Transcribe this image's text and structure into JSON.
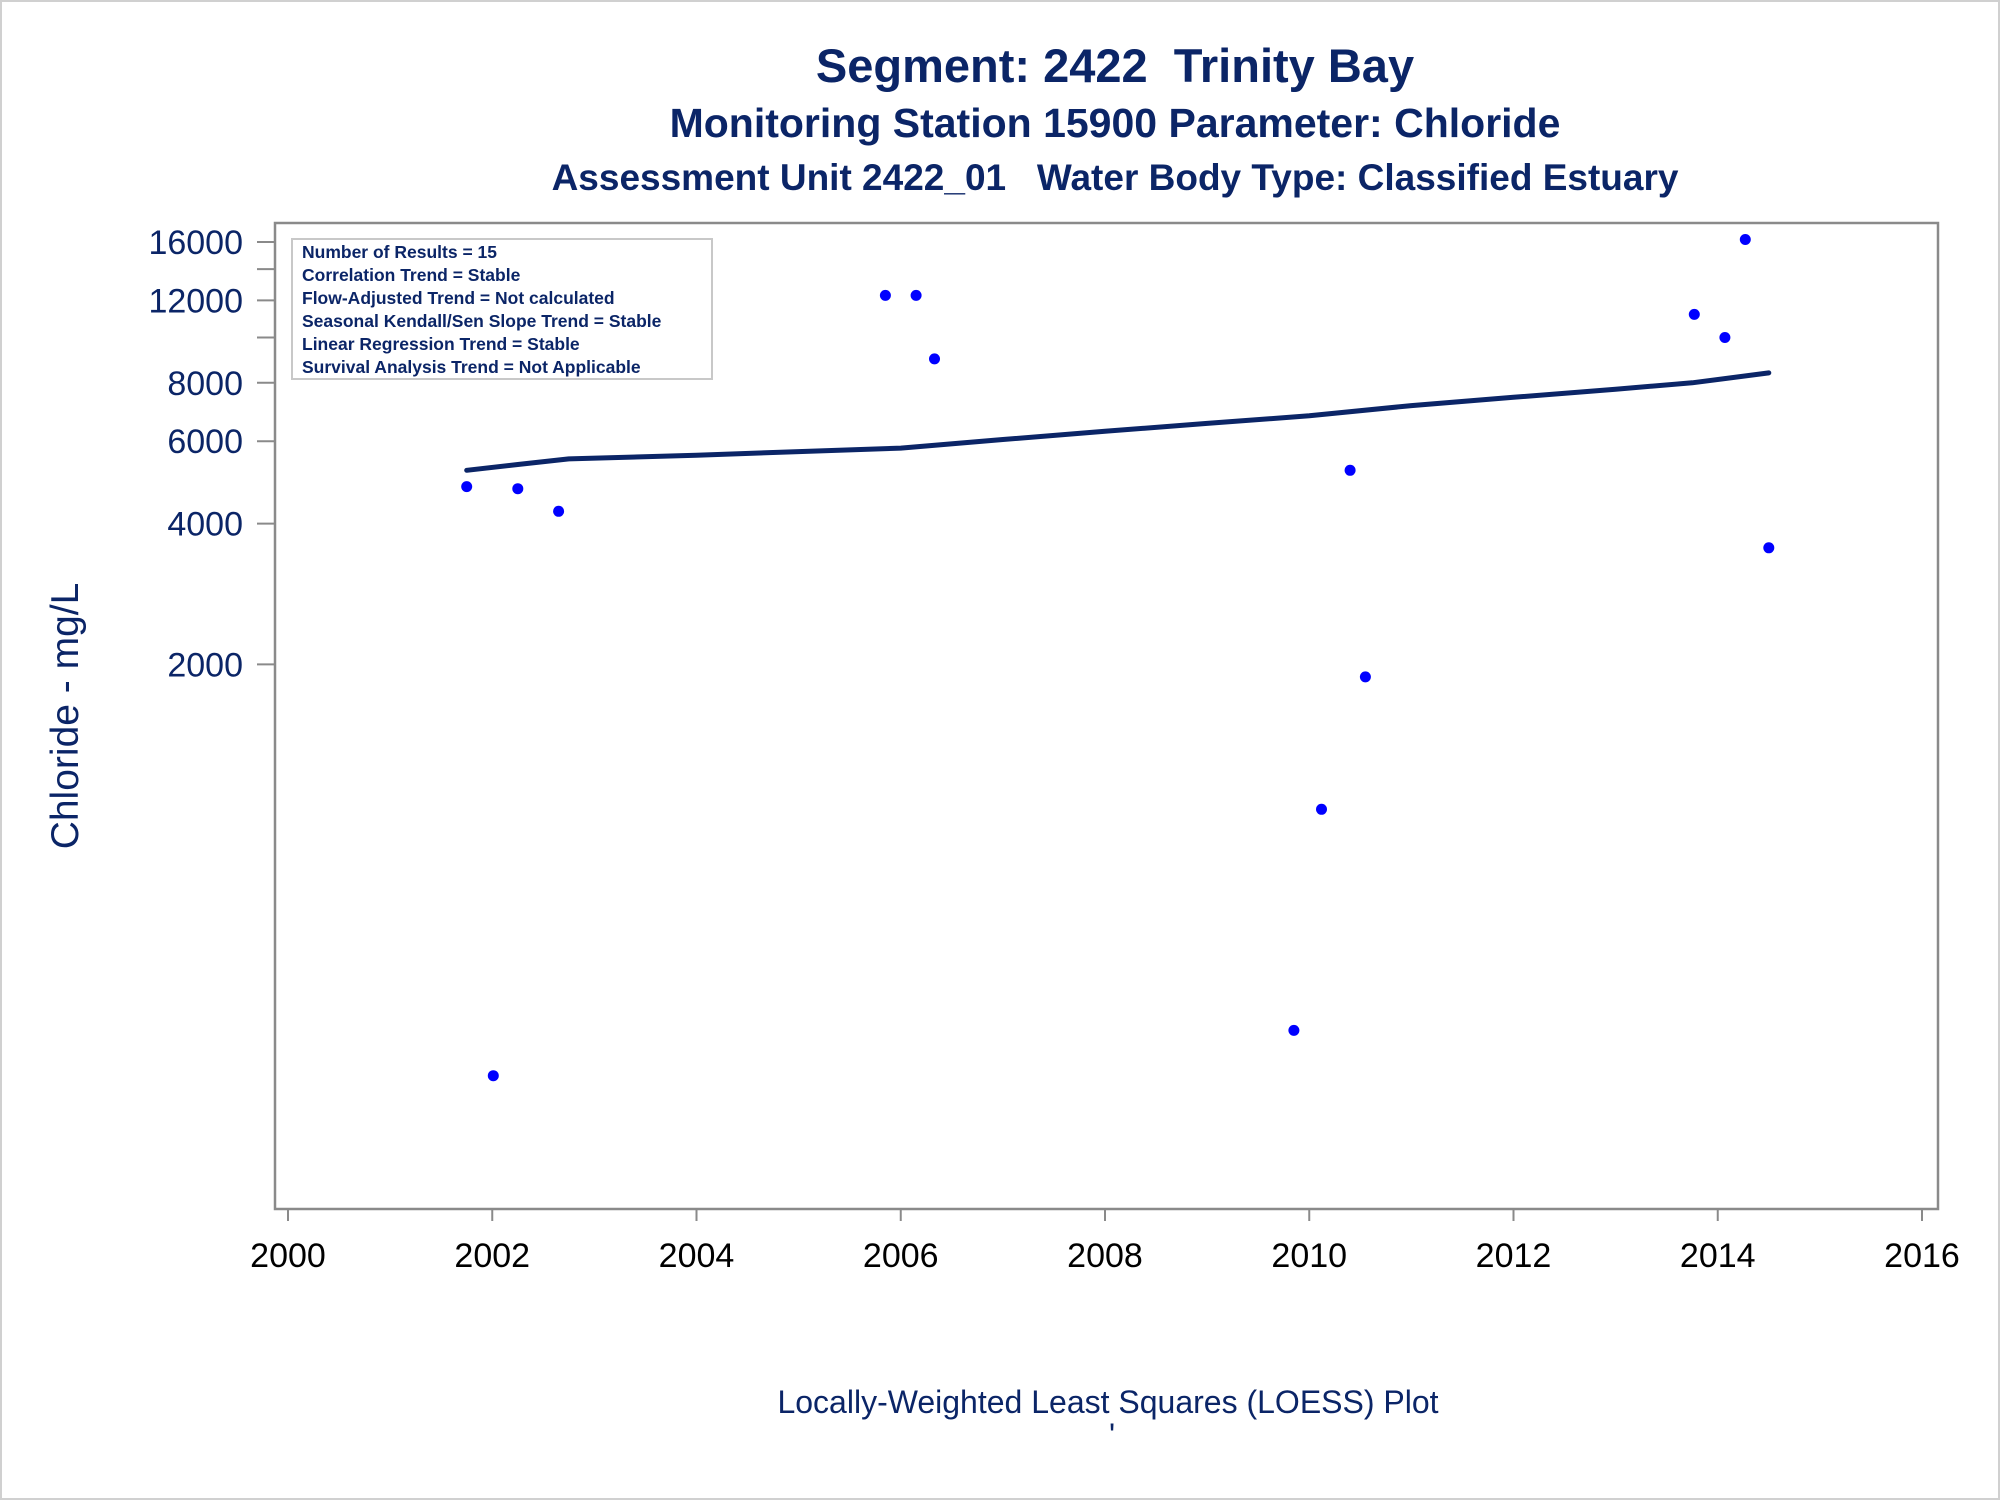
{
  "chart_data": {
    "type": "scatter",
    "title": "Segment: 2422  Trinity Bay",
    "subtitle": "Monitoring Station 15900 Parameter: Chloride",
    "subtitle2": "Assessment Unit 2422_01   Water Body Type: Classified Estuary",
    "xlabel": "Locally-Weighted Least Squares (LOESS) Plot",
    "ylabel": "Chloride - mg/L",
    "footnote": "'",
    "x_ticks": [
      "2000",
      "2002",
      "2004",
      "2006",
      "2008",
      "2010",
      "2012",
      "2014",
      "2016"
    ],
    "y_ticks": [
      "2000",
      "4000",
      "6000",
      "8000",
      "12000",
      "16000"
    ],
    "xlim": [
      2000,
      2016
    ],
    "ylim": [
      250,
      16500
    ],
    "y_scale": "log",
    "grid": false,
    "legend_position": "top-left",
    "legend": [
      "Number of Results = 15",
      "Correlation Trend = Stable",
      "Flow-Adjusted Trend = Not calculated",
      "Seasonal Kendall/Sen Slope Trend = Stable",
      "Linear Regression Trend = Stable",
      "Survival Analysis Trend = Not Applicable"
    ],
    "series": [
      {
        "type": "scatter",
        "color": "#0000ff",
        "points": [
          {
            "x": 2001.75,
            "y": 4800
          },
          {
            "x": 2002.01,
            "y": 264
          },
          {
            "x": 2002.25,
            "y": 4750
          },
          {
            "x": 2002.65,
            "y": 4250
          },
          {
            "x": 2005.85,
            "y": 12300
          },
          {
            "x": 2006.15,
            "y": 12300
          },
          {
            "x": 2006.33,
            "y": 9000
          },
          {
            "x": 2009.85,
            "y": 330
          },
          {
            "x": 2010.12,
            "y": 980
          },
          {
            "x": 2010.4,
            "y": 5200
          },
          {
            "x": 2010.55,
            "y": 1880
          },
          {
            "x": 2013.77,
            "y": 11200
          },
          {
            "x": 2014.07,
            "y": 10000
          },
          {
            "x": 2014.27,
            "y": 16200
          },
          {
            "x": 2014.5,
            "y": 3550
          }
        ]
      },
      {
        "type": "line",
        "color": "#0b2567",
        "points": [
          {
            "x": 2001.75,
            "y": 5200
          },
          {
            "x": 2002.25,
            "y": 5350
          },
          {
            "x": 2002.75,
            "y": 5500
          },
          {
            "x": 2004.0,
            "y": 5600
          },
          {
            "x": 2005.0,
            "y": 5700
          },
          {
            "x": 2006.0,
            "y": 5800
          },
          {
            "x": 2007.0,
            "y": 6050
          },
          {
            "x": 2008.0,
            "y": 6300
          },
          {
            "x": 2009.0,
            "y": 6550
          },
          {
            "x": 2010.0,
            "y": 6800
          },
          {
            "x": 2011.0,
            "y": 7150
          },
          {
            "x": 2012.0,
            "y": 7450
          },
          {
            "x": 2013.0,
            "y": 7750
          },
          {
            "x": 2013.75,
            "y": 8000
          },
          {
            "x": 2014.5,
            "y": 8400
          }
        ]
      }
    ]
  }
}
